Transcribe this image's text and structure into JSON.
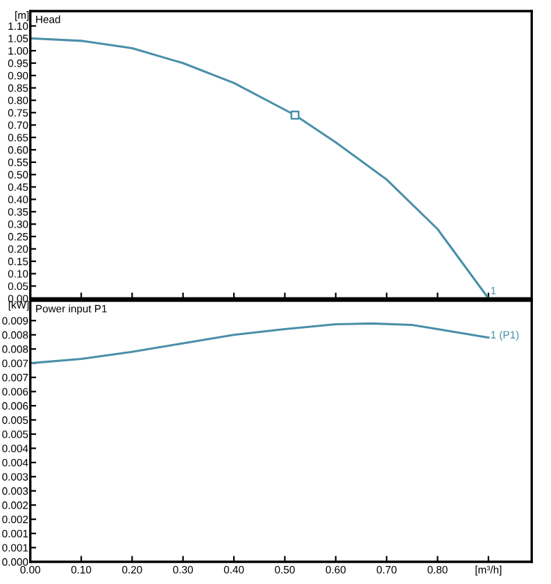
{
  "chart_data": [
    {
      "type": "line",
      "title": "Head",
      "ylabel": "[m]",
      "x": [
        0,
        0.1,
        0.2,
        0.3,
        0.4,
        0.52,
        0.6,
        0.7,
        0.8,
        0.9
      ],
      "series": [
        {
          "color": "#4a8fa8",
          "values": [
            1.05,
            1.04,
            1.01,
            0.95,
            0.87,
            0.74,
            0.63,
            0.48,
            0.28,
            0.0
          ]
        },
        {
          "type": "scatter",
          "marker": "square",
          "color": "#4a8fa8",
          "x": [
            0.52
          ],
          "values": [
            0.74
          ]
        }
      ],
      "annotations": [
        {
          "text": "1",
          "x": 0.9,
          "y": 0.0
        }
      ],
      "xlim": [
        0,
        0.985
      ],
      "ylim": [
        0,
        1.16
      ],
      "xticks": [
        0,
        0.1,
        0.2,
        0.3,
        0.4,
        0.5,
        0.6,
        0.7,
        0.8,
        0.9
      ],
      "yticks": [
        {
          "value": 0,
          "label": "0.00"
        },
        0.05,
        {
          "value": 0.1,
          "label": "0.10"
        },
        0.15,
        {
          "value": 0.2,
          "label": "0.20"
        },
        0.25,
        {
          "value": 0.3,
          "label": "0.30"
        },
        0.35,
        {
          "value": 0.4,
          "label": "0.40"
        },
        0.45,
        {
          "value": 0.5,
          "label": "0.50"
        },
        0.55,
        {
          "value": 0.6,
          "label": "0.60"
        },
        0.65,
        {
          "value": 0.7,
          "label": "0.70"
        },
        0.75,
        {
          "value": 0.8,
          "label": "0.80"
        },
        0.85,
        {
          "value": 0.9,
          "label": "0.90"
        },
        0.95,
        {
          "value": 1.0,
          "label": "1.00"
        },
        1.05,
        {
          "value": 1.1,
          "label": "1.10"
        }
      ],
      "tick_labels": "y",
      "grid": false,
      "legend": false
    },
    {
      "type": "line",
      "title": "Power input P1",
      "ylabel": "[kW]",
      "x": [
        0,
        0.1,
        0.2,
        0.3,
        0.4,
        0.5,
        0.6,
        0.67,
        0.75,
        0.8,
        0.9
      ],
      "series": [
        {
          "color": "#4a8fa8",
          "values": [
            0.007,
            0.00715,
            0.0074,
            0.0077,
            0.008,
            0.0082,
            0.00837,
            0.0084,
            0.00835,
            0.0082,
            0.0079
          ]
        }
      ],
      "annotations": [
        {
          "text": "1 (P1)",
          "x": 0.9,
          "y": 0.0079
        }
      ],
      "xlim": [
        0,
        0.985
      ],
      "ylim": [
        0,
        0.0092
      ],
      "xticks": [
        {
          "value": 0,
          "label": "0.00"
        },
        {
          "value": 0.1,
          "label": "0.10"
        },
        {
          "value": 0.2,
          "label": "0.20"
        },
        {
          "value": 0.3,
          "label": "0.30"
        },
        {
          "value": 0.4,
          "label": "0.40"
        },
        {
          "value": 0.5,
          "label": "0.50"
        },
        {
          "value": 0.6,
          "label": "0.60"
        },
        {
          "value": 0.7,
          "label": "0.70"
        },
        {
          "value": 0.8,
          "label": "0.80"
        },
        {
          "value": 0.9,
          "label": "[m³/h]"
        }
      ],
      "yticks": [
        {
          "value": 0,
          "label": "0.000"
        },
        {
          "value": 0.0005,
          "label": "0.001"
        },
        0.001,
        {
          "value": 0.0015,
          "label": "0.002"
        },
        0.002,
        {
          "value": 0.0025,
          "label": "0.003"
        },
        0.003,
        {
          "value": 0.0035,
          "label": "0.004"
        },
        0.004,
        {
          "value": 0.0045,
          "label": "0.005"
        },
        0.005,
        {
          "value": 0.0055,
          "label": "0.006"
        },
        0.006,
        {
          "value": 0.0065,
          "label": "0.007"
        },
        0.007,
        {
          "value": 0.0075,
          "label": "0.008"
        },
        0.008,
        {
          "value": 0.0085,
          "label": "0.009"
        }
      ],
      "grid": false,
      "legend": false
    }
  ]
}
